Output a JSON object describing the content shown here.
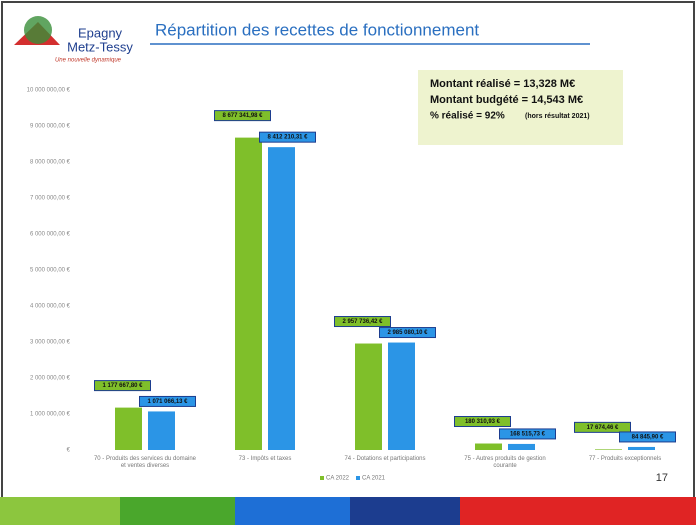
{
  "header": {
    "logo_line1": "Epagny",
    "logo_line2": "Metz-Tessy",
    "tagline": "Une nouvelle dynamique"
  },
  "summary": {
    "line1": "Montant réalisé = 13,328 M€",
    "line2": "Montant budgété = 14,543 M€",
    "line3": "% réalisé = 92%",
    "line3_note": "(hors résultat 2021)"
  },
  "page_number": "17",
  "chart_data": {
    "type": "bar",
    "title": "Répartition des recettes de fonctionnement",
    "categories": [
      "70 - Produits des services du domaine et ventes diverses",
      "73 - Impôts et taxes",
      "74 - Dotations et participations",
      "75 - Autres produits de gestion courante",
      "77 - Produits exceptionnels"
    ],
    "series": [
      {
        "name": "CA 2022",
        "color": "#7fbf2a",
        "values": [
          1177667.8,
          8677341.98,
          2957736.42,
          180310.93,
          17674.46
        ],
        "value_labels": [
          "1 177 667,80 €",
          "8 677 341,98 €",
          "2 957 736,42 €",
          "180 310,93 €",
          "17 674,46 €"
        ]
      },
      {
        "name": "CA 2021",
        "color": "#2b95e6",
        "values": [
          1071066.13,
          8412210.31,
          2985080.1,
          168515.73,
          84845.9
        ],
        "value_labels": [
          "1 071 066,13 €",
          "8 412 210,31 €",
          "2 985 080,10 €",
          "168 515,73 €",
          "84 845,90 €"
        ]
      }
    ],
    "ylim": [
      0,
      10000000
    ],
    "yticks": [
      {
        "value": 0,
        "label": "€"
      },
      {
        "value": 1000000,
        "label": "1 000 000,00 €"
      },
      {
        "value": 2000000,
        "label": "2 000 000,00 €"
      },
      {
        "value": 3000000,
        "label": "3 000 000,00 €"
      },
      {
        "value": 4000000,
        "label": "4 000 000,00 €"
      },
      {
        "value": 5000000,
        "label": "5 000 000,00 €"
      },
      {
        "value": 6000000,
        "label": "6 000 000,00 €"
      },
      {
        "value": 7000000,
        "label": "7 000 000,00 €"
      },
      {
        "value": 8000000,
        "label": "8 000 000,00 €"
      },
      {
        "value": 9000000,
        "label": "9 000 000,00 €"
      },
      {
        "value": 10000000,
        "label": "10 000 000,00 €"
      }
    ],
    "grid": false
  }
}
